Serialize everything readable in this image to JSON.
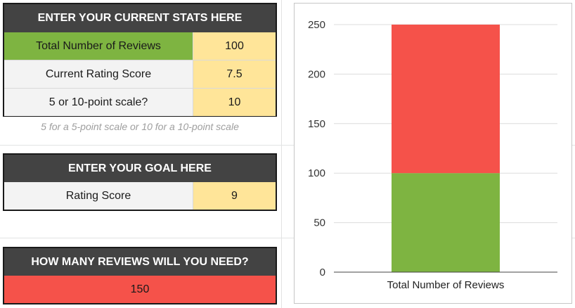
{
  "current_stats": {
    "header": "ENTER YOUR CURRENT STATS HERE",
    "rows": [
      {
        "label": "Total Number of Reviews",
        "value": "100"
      },
      {
        "label": "Current Rating Score",
        "value": "7.5"
      },
      {
        "label": "5 or 10-point scale?",
        "value": "10"
      }
    ],
    "note": "5 for a 5-point scale or 10 for a 10-point scale"
  },
  "goal": {
    "header": "ENTER YOUR GOAL HERE",
    "rows": [
      {
        "label": "Rating Score",
        "value": "9"
      }
    ]
  },
  "result": {
    "header": "HOW MANY REVIEWS WILL YOU NEED?",
    "value": "150"
  },
  "colors": {
    "header_bg": "#434343",
    "green": "#7eb441",
    "red": "#f5524a",
    "input_yellow": "#ffe599"
  },
  "chart_data": {
    "type": "bar",
    "stacked": true,
    "categories": [
      "Total Number of Reviews"
    ],
    "series": [
      {
        "values": [
          100
        ],
        "color": "#7eb441"
      },
      {
        "values": [
          150
        ],
        "color": "#f5524a"
      }
    ],
    "yticks": [
      0,
      50,
      100,
      150,
      200,
      250
    ],
    "ylim": [
      0,
      250
    ],
    "grid": true,
    "legend": "none"
  }
}
